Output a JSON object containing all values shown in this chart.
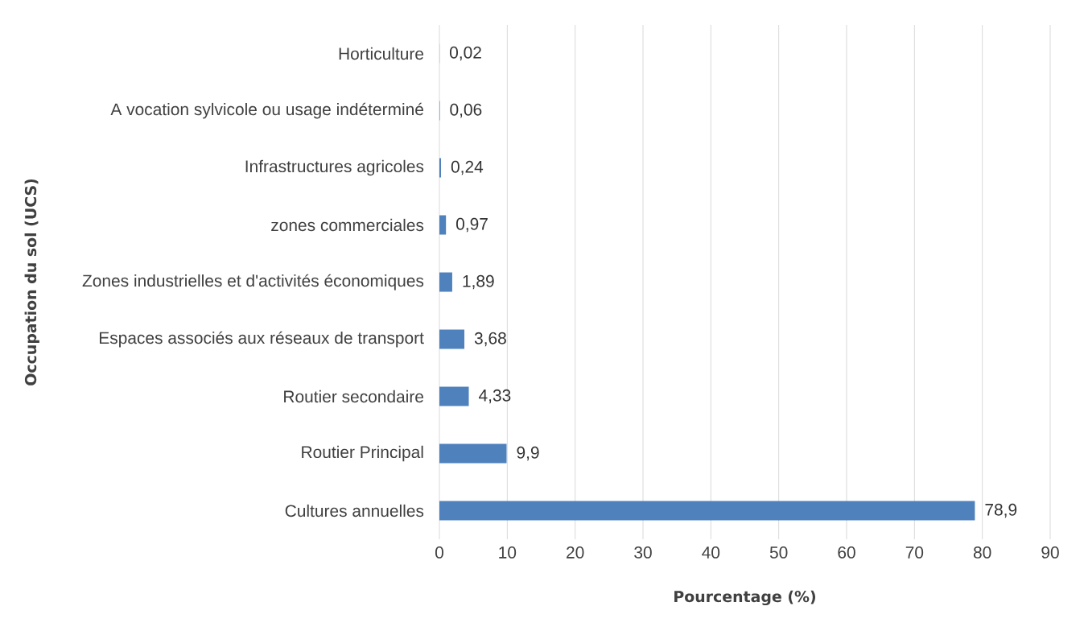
{
  "chart_data": {
    "type": "bar",
    "orientation": "horizontal",
    "xlabel": "Pourcentage (%)",
    "ylabel": "Occupation du sol (UCS)",
    "categories": [
      "Horticulture",
      "A vocation sylvicole ou usage indéterminé",
      "Infrastructures agricoles",
      "zones commerciales",
      "Zones industrielles et d'activités économiques",
      "Espaces associés aux réseaux de transport",
      "Routier secondaire",
      "Routier Principal",
      "Cultures annuelles"
    ],
    "values": [
      0.02,
      0.06,
      0.24,
      0.97,
      1.89,
      3.68,
      4.33,
      9.9,
      78.9
    ],
    "value_labels": [
      "0,02",
      "0,06",
      "0,24",
      "0,97",
      "1,89",
      "3,68",
      "4,33",
      "9,9",
      "78,9"
    ],
    "color": "#4f81bd",
    "xlim": [
      0,
      90
    ],
    "xticks": [
      0,
      10,
      20,
      30,
      40,
      50,
      60,
      70,
      80,
      90
    ],
    "grid": "x"
  }
}
